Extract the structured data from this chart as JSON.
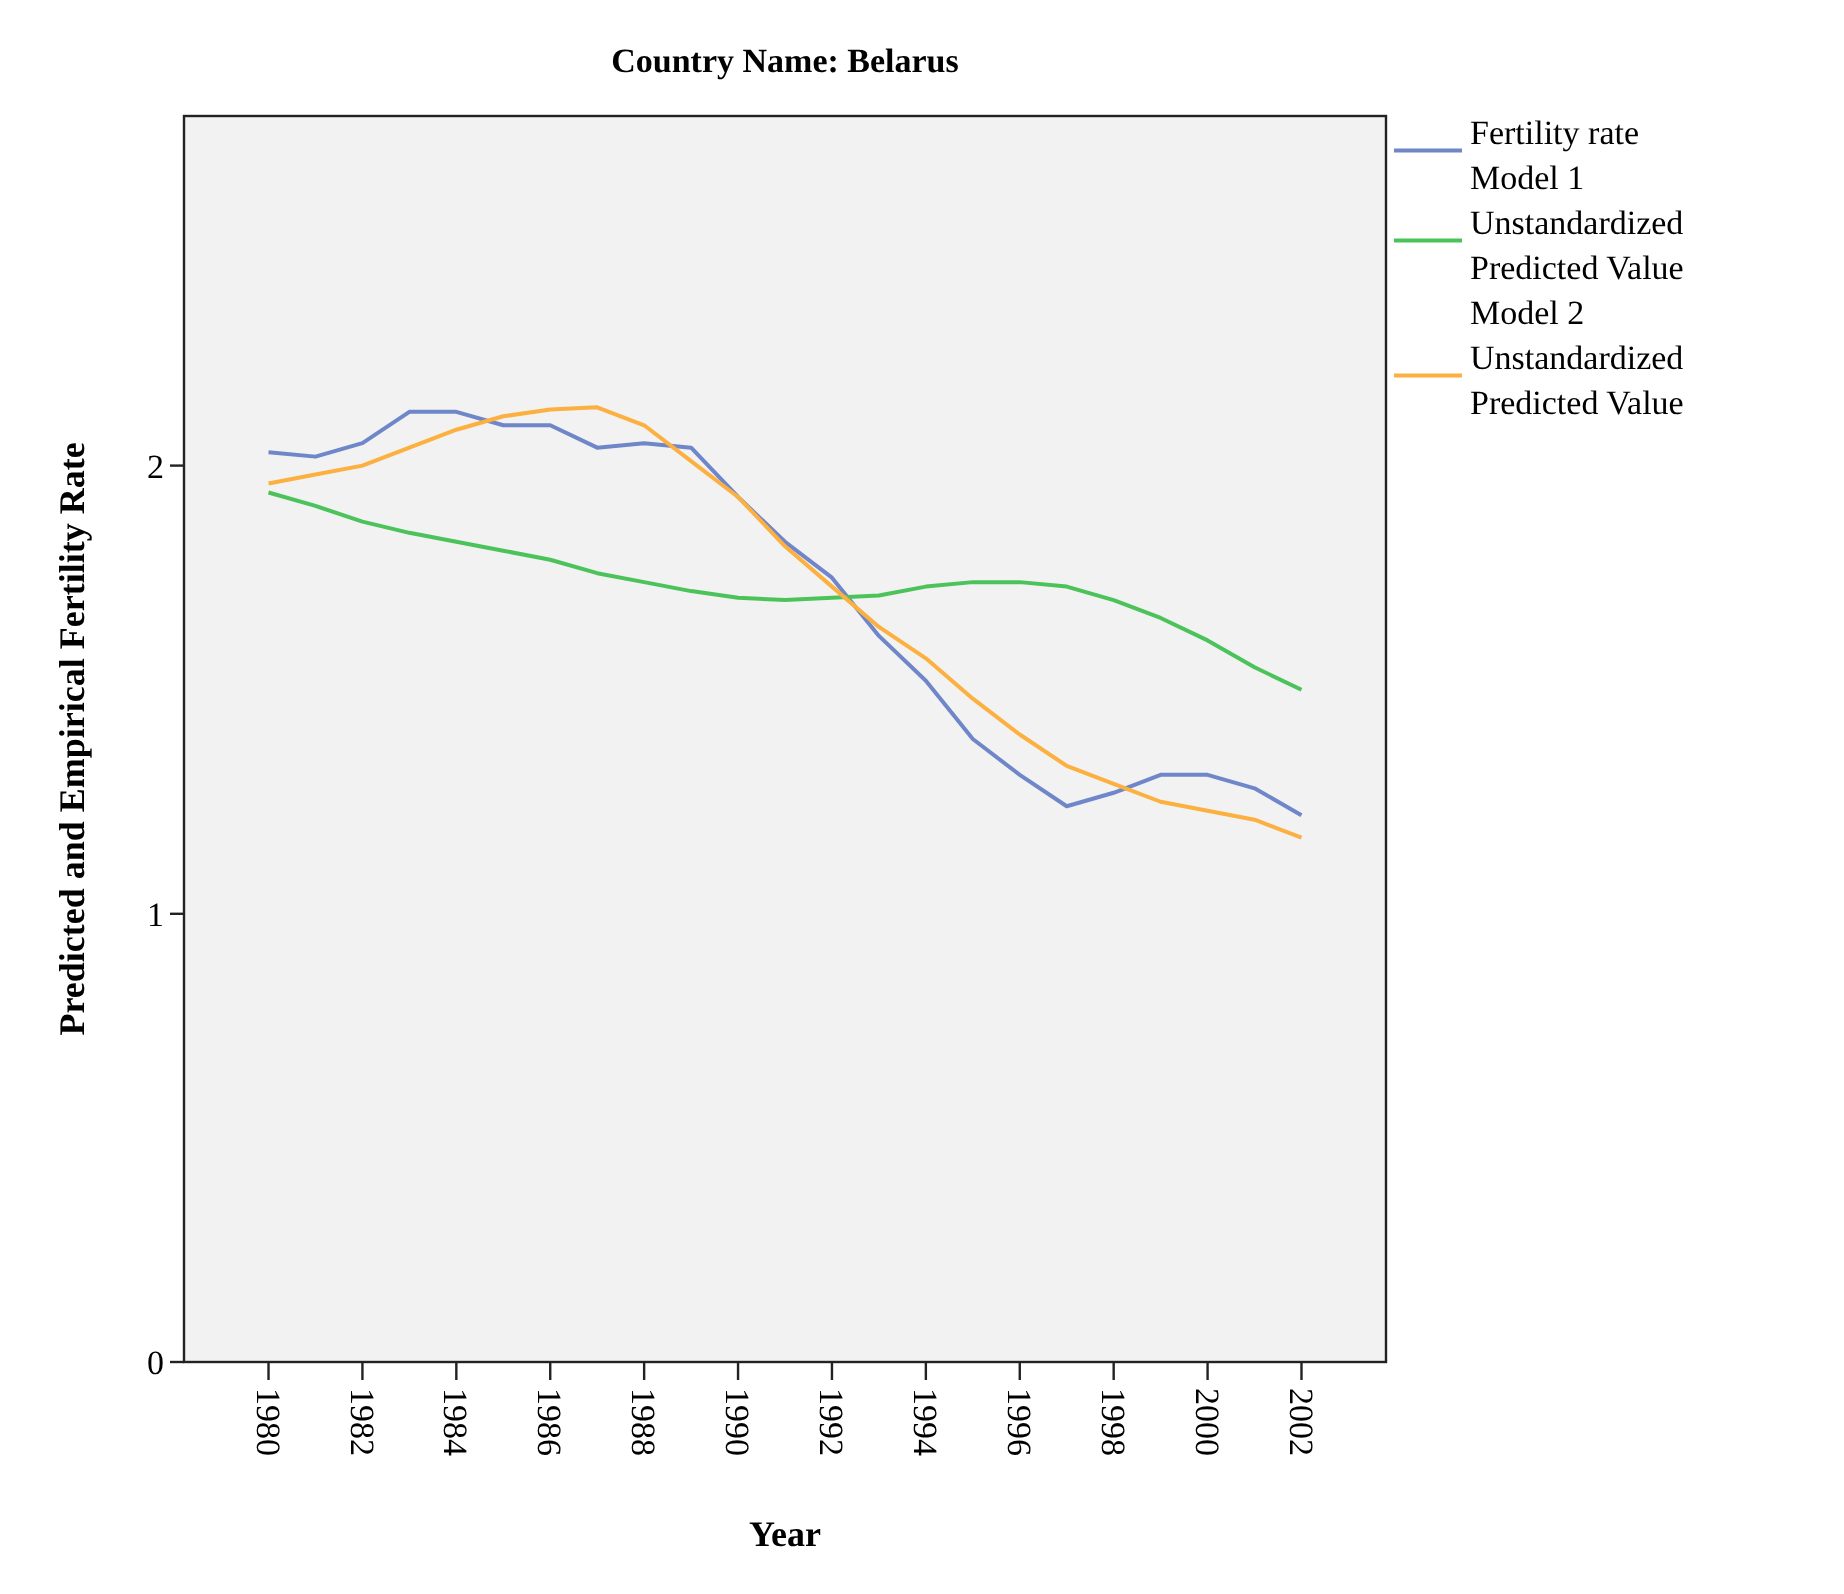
{
  "chart_data": {
    "type": "line",
    "title": "Country Name: Belarus",
    "xlabel": "Year",
    "ylabel": "Predicted and Empirical Fertility Rate",
    "x": [
      1980,
      1981,
      1982,
      1983,
      1984,
      1985,
      1986,
      1987,
      1988,
      1989,
      1990,
      1991,
      1992,
      1993,
      1994,
      1995,
      1996,
      1997,
      1998,
      1999,
      2000,
      2001,
      2002
    ],
    "series": [
      {
        "name": "Fertility rate",
        "color": "#6f86c9",
        "values": [
          2.03,
          2.02,
          2.05,
          2.12,
          2.12,
          2.09,
          2.09,
          2.04,
          2.05,
          2.04,
          1.93,
          1.83,
          1.75,
          1.62,
          1.52,
          1.39,
          1.31,
          1.24,
          1.27,
          1.31,
          1.31,
          1.28,
          1.22
        ]
      },
      {
        "name": "Model 1 Unstandardized Predicted Value",
        "color": "#4cc35a",
        "values": [
          1.94,
          1.91,
          1.875,
          1.85,
          1.83,
          1.81,
          1.79,
          1.76,
          1.74,
          1.72,
          1.705,
          1.7,
          1.705,
          1.71,
          1.73,
          1.74,
          1.74,
          1.73,
          1.7,
          1.66,
          1.61,
          1.55,
          1.5
        ]
      },
      {
        "name": "Model 2 Unstandardized Predicted Value",
        "color": "#fbb040",
        "values": [
          1.96,
          1.98,
          2.0,
          2.04,
          2.08,
          2.11,
          2.125,
          2.13,
          2.09,
          2.01,
          1.93,
          1.82,
          1.73,
          1.64,
          1.57,
          1.48,
          1.4,
          1.33,
          1.29,
          1.25,
          1.23,
          1.21,
          1.17
        ]
      }
    ],
    "xlim": [
      1978.2,
      2003.8
    ],
    "ylim": [
      0,
      2.78
    ],
    "xticks": [
      1980,
      1982,
      1984,
      1986,
      1988,
      1990,
      1992,
      1994,
      1996,
      1998,
      2000,
      2002
    ],
    "yticks": [
      0,
      1,
      2
    ],
    "legend": "top right",
    "grid": false,
    "marker": "none",
    "line_style": "solid"
  }
}
